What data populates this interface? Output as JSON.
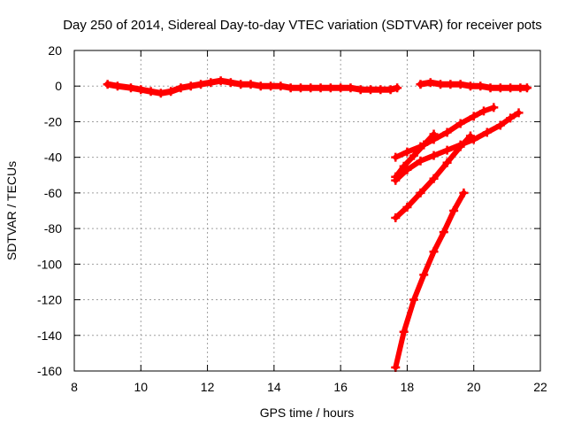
{
  "chart_data": {
    "type": "scatter",
    "title": "Day 250 of 2014, Sidereal Day-to-day VTEC variation (SDTVAR) for receiver pots",
    "xlabel": "GPS time / hours",
    "ylabel": "SDTVAR / TECUs",
    "xlim": [
      8,
      22
    ],
    "ylim": [
      -160,
      20
    ],
    "xticks": [
      8,
      10,
      12,
      14,
      16,
      18,
      20,
      22
    ],
    "yticks": [
      -160,
      -140,
      -120,
      -100,
      -80,
      -60,
      -40,
      -20,
      0,
      20
    ],
    "grid": true,
    "legend": "none",
    "marker_color": "#ff0000",
    "series": [
      {
        "x": [
          9.0,
          9.3,
          9.7,
          10.0,
          10.3,
          10.6,
          10.9,
          11.2,
          11.5,
          11.8,
          12.1,
          12.4,
          12.7,
          13.0,
          13.3,
          13.6,
          13.9,
          14.2,
          14.5,
          14.8,
          15.1,
          15.4,
          15.7,
          16.0,
          16.3,
          16.6,
          16.9,
          17.2,
          17.5,
          17.7
        ],
        "y": [
          1,
          0,
          -1,
          -2,
          -3,
          -4,
          -3,
          -1,
          0,
          1,
          2,
          3,
          2,
          1,
          1,
          0,
          0,
          0,
          -1,
          -1,
          -1,
          -1,
          -1,
          -1,
          -1,
          -2,
          -2,
          -2,
          -2,
          -1
        ]
      },
      {
        "x": [
          18.4,
          18.7,
          19.0,
          19.3,
          19.6,
          19.9,
          20.2,
          20.5,
          20.8,
          21.1,
          21.4,
          21.6
        ],
        "y": [
          1,
          2,
          1,
          1,
          1,
          0,
          0,
          -1,
          -1,
          -1,
          -1,
          -1
        ]
      },
      {
        "x": [
          17.65,
          18.0,
          18.4,
          18.8,
          19.2,
          19.6,
          20.0,
          20.3,
          20.6
        ],
        "y": [
          -40,
          -37,
          -34,
          -30,
          -26,
          -21,
          -17,
          -14,
          -12
        ]
      },
      {
        "x": [
          17.65,
          18.0,
          18.4,
          18.8,
          19.2,
          19.6,
          20.0,
          20.4,
          20.8,
          21.1,
          21.35
        ],
        "y": [
          -53,
          -47,
          -42,
          -39,
          -36,
          -33,
          -30,
          -26,
          -22,
          -18,
          -15
        ]
      },
      {
        "x": [
          17.65,
          17.9,
          18.2,
          18.5,
          18.8
        ],
        "y": [
          -51,
          -45,
          -39,
          -33,
          -27
        ]
      },
      {
        "x": [
          17.65,
          18.0,
          18.4,
          18.8,
          19.2,
          19.6,
          19.9
        ],
        "y": [
          -74,
          -68,
          -60,
          -52,
          -43,
          -34,
          -28
        ]
      },
      {
        "x": [
          17.65,
          17.9,
          18.2,
          18.5,
          18.8,
          19.1,
          19.4,
          19.7
        ],
        "y": [
          -158,
          -138,
          -120,
          -106,
          -93,
          -82,
          -70,
          -60
        ]
      }
    ]
  }
}
